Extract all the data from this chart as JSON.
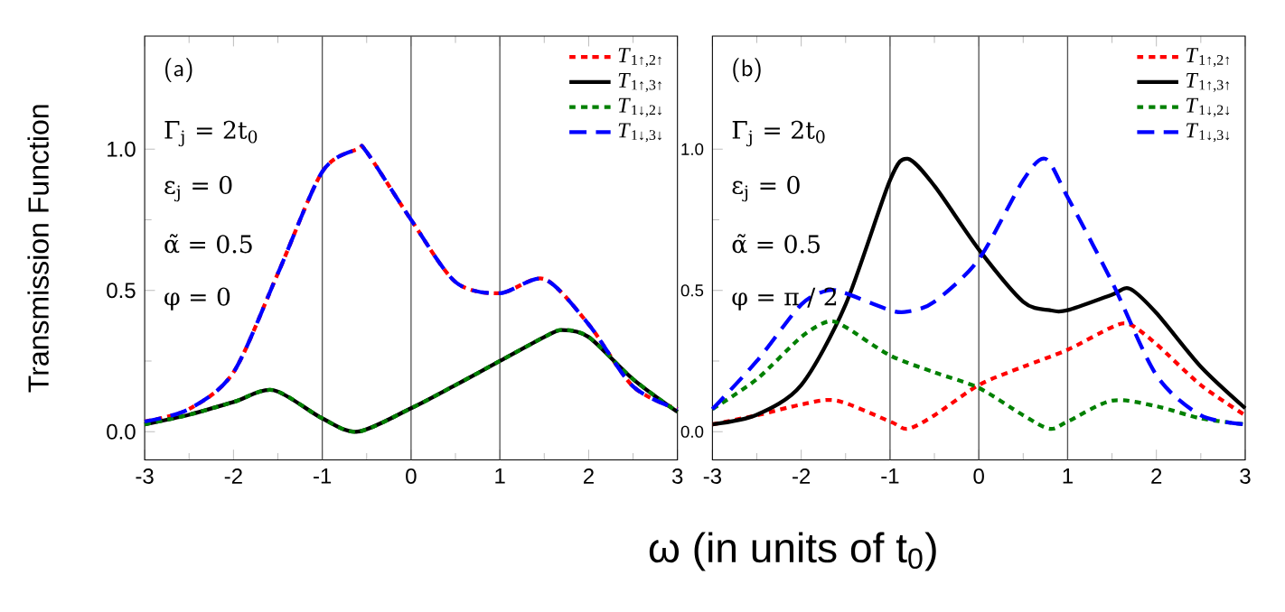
{
  "chart_data": [
    {
      "type": "line",
      "xlabel": "ω (in units of t$_{0}$)",
      "ylabel": "Transmission Function",
      "annotations": [
        "(a)",
        "Γ$_{j}$ = 2t$_{0}$",
        "ε$_{j}$ = 0",
        "α̃ = 0.5",
        "φ = 0"
      ],
      "xlim": [
        -3,
        3
      ],
      "ylim": [
        -0.1,
        1.4
      ],
      "xticks": [
        -3,
        -2,
        -1,
        0,
        1,
        2,
        3
      ],
      "yticks": [
        {
          "value": 0,
          "label": "0.0"
        },
        {
          "value": 0.5,
          "label": "0.5"
        },
        {
          "value": 1,
          "label": "1.0"
        }
      ],
      "ref_lines": [
        {
          "axis": "x",
          "value": -1,
          "color": "#555555"
        },
        {
          "axis": "x",
          "value": 0,
          "color": "#555555"
        },
        {
          "axis": "x",
          "value": 1,
          "color": "#555555"
        }
      ],
      "legend": "top right",
      "grid": false,
      "series": [
        {
          "name": "*T*$_{1↑,2↑}$",
          "color": "#ff0000",
          "line_style": "dotted",
          "x": [
            -3,
            -2.5,
            -2,
            -1.5,
            -1,
            -0.6,
            -0.5,
            0,
            0.5,
            1,
            1.5,
            2,
            2.5,
            3
          ],
          "values": [
            0.036,
            0.08,
            0.21,
            0.56,
            0.92,
            1.0,
            0.99,
            0.75,
            0.53,
            0.49,
            0.54,
            0.38,
            0.16,
            0.08
          ]
        },
        {
          "name": "*T*$_{1↑,3↑}$",
          "color": "#000000",
          "line_style": "solid",
          "x": [
            -3,
            -2.5,
            -2,
            -1.55,
            -1,
            -0.6,
            0,
            0.5,
            1,
            1.5,
            1.7,
            2,
            2.5,
            3
          ],
          "values": [
            0.026,
            0.06,
            0.105,
            0.147,
            0.047,
            0.0,
            0.083,
            0.165,
            0.25,
            0.335,
            0.36,
            0.335,
            0.186,
            0.07
          ]
        },
        {
          "name": "*T*$_{1↓,2↓}$",
          "color": "#008000",
          "line_style": "dotted",
          "x": [
            -3,
            -2.5,
            -2,
            -1.55,
            -1,
            -0.6,
            0,
            0.5,
            1,
            1.5,
            1.7,
            2,
            2.5,
            3
          ],
          "values": [
            0.026,
            0.06,
            0.105,
            0.147,
            0.047,
            0.0,
            0.083,
            0.165,
            0.25,
            0.335,
            0.36,
            0.335,
            0.186,
            0.07
          ]
        },
        {
          "name": "*T*$_{1↓,3↓}$",
          "color": "#0000ff",
          "line_style": "dashed",
          "x": [
            -3,
            -2.5,
            -2,
            -1.5,
            -1,
            -0.6,
            -0.5,
            0,
            0.5,
            1,
            1.5,
            2,
            2.5,
            3
          ],
          "values": [
            0.036,
            0.08,
            0.21,
            0.56,
            0.92,
            1.0,
            0.99,
            0.75,
            0.53,
            0.49,
            0.54,
            0.38,
            0.16,
            0.08
          ]
        }
      ]
    },
    {
      "type": "line",
      "annotations": [
        "(b)",
        "Γ$_{j}$ = 2t$_{0}$",
        "ε$_{j}$ = 0",
        "α̃ = 0.5",
        "φ = π / 2"
      ],
      "xlim": [
        -3,
        3
      ],
      "ylim": [
        -0.1,
        1.4
      ],
      "xticks": [
        -3,
        -2,
        -1,
        0,
        1,
        2,
        3
      ],
      "yticks": [
        {
          "value": 0,
          "label": "0.0"
        },
        {
          "value": 0.5,
          "label": "0.5"
        },
        {
          "value": 1,
          "label": "1.0"
        }
      ],
      "ref_lines": [
        {
          "axis": "x",
          "value": -1,
          "color": "#555555"
        },
        {
          "axis": "x",
          "value": 0,
          "color": "#555555"
        },
        {
          "axis": "x",
          "value": 1,
          "color": "#555555"
        }
      ],
      "legend": "top right",
      "grid": false,
      "series": [
        {
          "name": "*T*$_{1↑,2↑}$",
          "color": "#ff0000",
          "line_style": "dotted",
          "x": [
            -3,
            -2.5,
            -2,
            -1.6,
            -1,
            -0.8,
            -0.5,
            0,
            0.5,
            1,
            1.5,
            1.7,
            2,
            2.5,
            3
          ],
          "values": [
            0.026,
            0.058,
            0.096,
            0.11,
            0.036,
            0.01,
            0.058,
            0.165,
            0.23,
            0.29,
            0.37,
            0.38,
            0.31,
            0.165,
            0.058
          ]
        },
        {
          "name": "*T*$_{1↑,3↑}$",
          "color": "#000000",
          "line_style": "solid",
          "x": [
            -3,
            -2.5,
            -2,
            -1.5,
            -1,
            -0.8,
            -0.5,
            0,
            0.5,
            0.8,
            1,
            1.5,
            1.7,
            2,
            2.5,
            3
          ],
          "values": [
            0.026,
            0.06,
            0.165,
            0.45,
            0.89,
            0.966,
            0.87,
            0.645,
            0.46,
            0.43,
            0.43,
            0.485,
            0.506,
            0.42,
            0.23,
            0.083
          ]
        },
        {
          "name": "*T*$_{1↓,2↓}$",
          "color": "#008000",
          "line_style": "dotted",
          "x": [
            -3,
            -2.5,
            -2,
            -1.7,
            -1.5,
            -1,
            -0.5,
            0,
            0.5,
            0.8,
            1,
            1.5,
            2,
            2.5,
            3
          ],
          "values": [
            0.08,
            0.186,
            0.335,
            0.39,
            0.37,
            0.27,
            0.21,
            0.155,
            0.058,
            0.01,
            0.036,
            0.11,
            0.09,
            0.047,
            0.026
          ]
        },
        {
          "name": "*T*$_{1↓,3↓}$",
          "color": "#0000ff",
          "line_style": "dashed",
          "x": [
            -3,
            -2.5,
            -2,
            -1.7,
            -1.5,
            -1,
            -0.8,
            -0.5,
            0,
            0.5,
            0.75,
            1,
            1.5,
            2,
            2.5,
            3
          ],
          "values": [
            0.08,
            0.25,
            0.45,
            0.5,
            0.49,
            0.43,
            0.425,
            0.46,
            0.61,
            0.89,
            0.966,
            0.83,
            0.53,
            0.2,
            0.058,
            0.026
          ]
        }
      ]
    }
  ]
}
